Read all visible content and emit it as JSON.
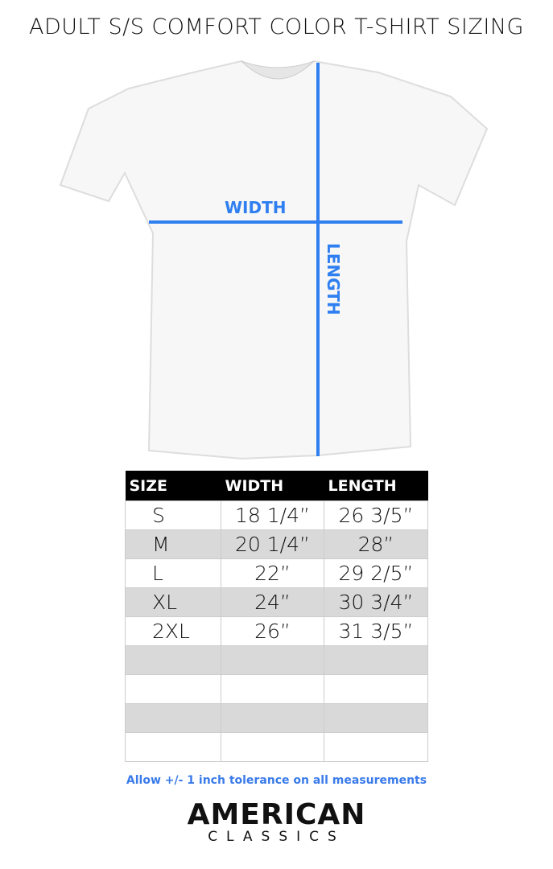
{
  "title": "ADULT S/S COMFORT COLOR T-SHIRT SIZING",
  "diagram": {
    "width_label": "WIDTH",
    "length_label": "LENGTH",
    "line_color": "#2f7ff0"
  },
  "table": {
    "headers": [
      "SIZE",
      "WIDTH",
      "LENGTH"
    ],
    "rows": [
      [
        "S",
        "18 1/4”",
        "26 3/5”"
      ],
      [
        "M",
        "20 1/4”",
        "28”"
      ],
      [
        "L",
        "22”",
        "29 2/5”"
      ],
      [
        "XL",
        "24”",
        "30 3/4”"
      ],
      [
        "2XL",
        "26”",
        "31 3/5”"
      ],
      [
        "",
        "",
        ""
      ],
      [
        "",
        "",
        ""
      ],
      [
        "",
        "",
        ""
      ],
      [
        "",
        "",
        ""
      ]
    ]
  },
  "note": "Allow +/- 1 inch tolerance on all measurements",
  "logo": {
    "line1": "AMERICAN",
    "line2": "CLASSICS"
  }
}
